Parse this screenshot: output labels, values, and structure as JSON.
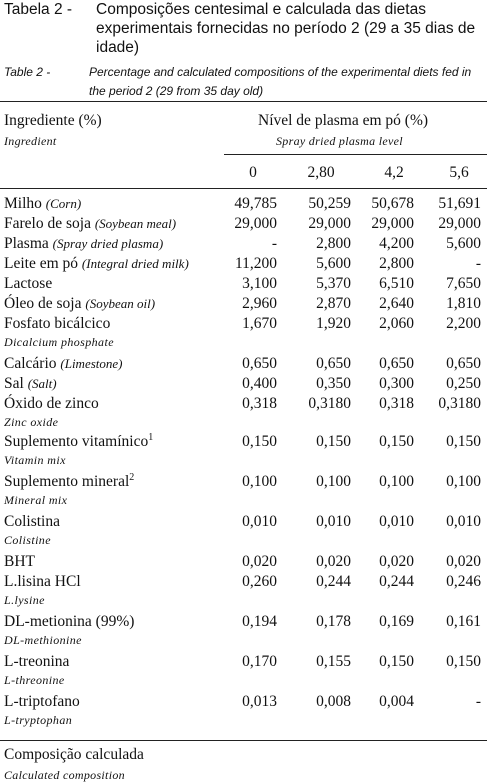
{
  "caption_pt": {
    "label": "Tabela 2 -",
    "text": "Composições centesimal e calculada das dietas experimentais fornecidas no período 2 (29 a 35 dias de idade)"
  },
  "caption_en": {
    "label": "Table 2 -",
    "text": "Percentage and calculated compositions of the experimental diets fed in the period 2 (29 from 35 day old)"
  },
  "header": {
    "ingredient": "Ingrediente (%)",
    "ingredient_en": "Ingredient",
    "plasma_level": "Nível de plasma em pó (%)",
    "plasma_level_en": "Spray dried plasma level",
    "levels": [
      "0",
      "2,80",
      "4,2",
      "5,6"
    ]
  },
  "rows": [
    {
      "name": "Milho",
      "name_en_inline": "(Corn)",
      "values": [
        "49,785",
        "50,259",
        "50,678",
        "51,691"
      ]
    },
    {
      "name": "Farelo de soja",
      "name_en_inline": "(Soybean meal)",
      "values": [
        "29,000",
        "29,000",
        "29,000",
        "29,000"
      ]
    },
    {
      "name": "Plasma",
      "name_en_inline": "(Spray dried plasma)",
      "values": [
        "-",
        "2,800",
        "4,200",
        "5,600"
      ]
    },
    {
      "name": "Leite em pó",
      "name_en_inline": "(Integral dried milk)",
      "values": [
        "11,200",
        "5,600",
        "2,800",
        "-"
      ]
    },
    {
      "name": "Lactose",
      "values": [
        "3,100",
        "5,370",
        "6,510",
        "7,650"
      ]
    },
    {
      "name": "Óleo de soja",
      "name_en_inline": "(Soybean oil)",
      "values": [
        "2,960",
        "2,870",
        "2,640",
        "1,810"
      ]
    },
    {
      "name": "Fosfato bicálcico",
      "name_en": "Dicalcium phosphate",
      "values": [
        "1,670",
        "1,920",
        "2,060",
        "2,200"
      ]
    },
    {
      "name": "Calcário",
      "name_en_inline": "(Limestone)",
      "values": [
        "0,650",
        "0,650",
        "0,650",
        "0,650"
      ]
    },
    {
      "name": "Sal",
      "name_en_inline": "(Salt)",
      "values": [
        "0,400",
        "0,350",
        "0,300",
        "0,250"
      ]
    },
    {
      "name": "Óxido de zinco",
      "name_en": "Zinc oxide",
      "values": [
        "0,318",
        "0,3180",
        "0,318",
        "0,3180"
      ]
    },
    {
      "name": "Suplemento vitamínico",
      "sup": "1",
      "name_en": "Vitamin mix",
      "values": [
        "0,150",
        "0,150",
        "0,150",
        "0,150"
      ]
    },
    {
      "name": "Suplemento mineral",
      "sup": "2",
      "name_en": "Mineral mix",
      "values": [
        "0,100",
        "0,100",
        "0,100",
        "0,100"
      ]
    },
    {
      "name": "Colistina",
      "name_en": "Colistine",
      "values": [
        "0,010",
        "0,010",
        "0,010",
        "0,010"
      ]
    },
    {
      "name": "BHT",
      "values": [
        "0,020",
        "0,020",
        "0,020",
        "0,020"
      ]
    },
    {
      "name": "L.lisina HCl",
      "name_en": "L.lysine",
      "values": [
        "0,260",
        "0,244",
        "0,244",
        "0,246"
      ]
    },
    {
      "name": "DL-metionina (99%)",
      "name_en": "DL-methionine",
      "values": [
        "0,194",
        "0,178",
        "0,169",
        "0,161"
      ]
    },
    {
      "name": "L-treonina",
      "name_en": "L-threonine",
      "values": [
        "0,170",
        "0,155",
        "0,150",
        "0,150"
      ]
    },
    {
      "name": "L-triptofano",
      "name_en": "L-tryptophan",
      "values": [
        "0,013",
        "0,008",
        "0,004",
        "-"
      ]
    }
  ],
  "footer": {
    "section": "Composição calculada",
    "section_en": "Calculated composition"
  }
}
